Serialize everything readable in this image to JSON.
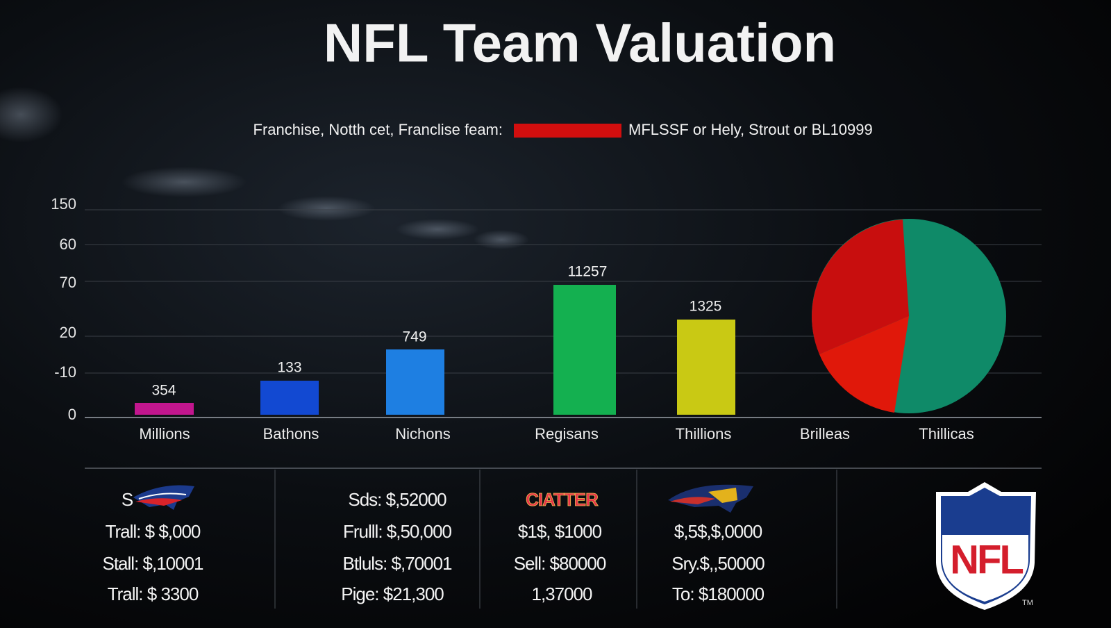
{
  "title": "NFL Team Valuation",
  "legend": {
    "left": "Franchise, Notth cet, Franclise feam:",
    "right": "MFLSSF or Hely, Strout or BL10999"
  },
  "axis": {
    "ticks": [
      "150",
      "60",
      "70",
      "20",
      "-10",
      "0"
    ]
  },
  "bars": [
    "354",
    "133",
    "749",
    "11257",
    "1325"
  ],
  "categories": [
    "Millions",
    "Bathons",
    "Nichons",
    "Regisans",
    "Thillions",
    "Brilleas",
    "Thillicas"
  ],
  "table": {
    "columns": [
      {
        "logo": "S",
        "rows": [
          "Trall: $ $,000",
          "Stall: $,10001",
          "Trall: $ 3300"
        ]
      },
      {
        "rows": [
          "Sds: $,52000",
          "Frulll: $,50,000",
          "Btluls: $,70001",
          "Pige: $21,300"
        ]
      },
      {
        "logo": "CIATTER",
        "rows": [
          "$1$, $1000",
          "Sell: $80000",
          "1,37000"
        ]
      },
      {
        "rows": [
          "$,5$,$,0000",
          "Sry.$,,50000",
          "To: $180000"
        ]
      }
    ]
  },
  "nfl_logo": {
    "text": "NFL",
    "mark": "TM"
  }
}
